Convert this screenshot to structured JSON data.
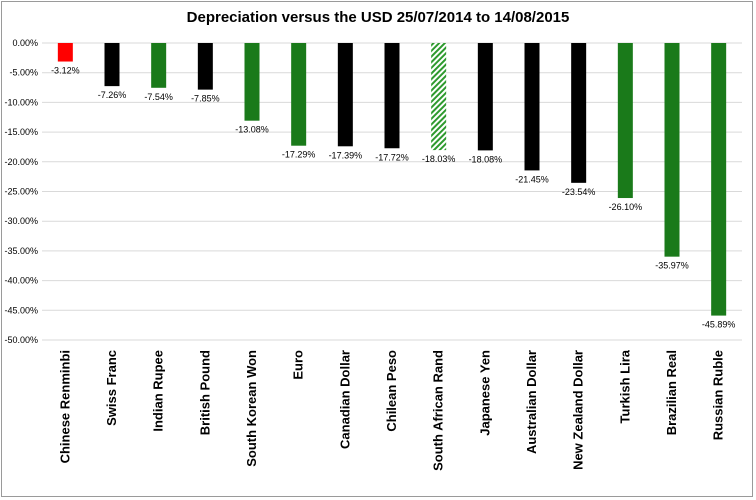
{
  "chart_data": {
    "type": "bar",
    "title": "Depreciation versus the USD 25/07/2014 to 14/08/2015",
    "xlabel": "",
    "ylabel": "",
    "ylim": [
      -50,
      0
    ],
    "yticks": [
      0,
      -5,
      -10,
      -15,
      -20,
      -25,
      -30,
      -35,
      -40,
      -45,
      -50
    ],
    "ytick_labels": [
      "0.00%",
      "-5.00%",
      "-10.00%",
      "-15.00%",
      "-20.00%",
      "-25.00%",
      "-30.00%",
      "-35.00%",
      "-40.00%",
      "-45.00%",
      "-50.00%"
    ],
    "grid": true,
    "categories": [
      "Chinese Renminbi",
      "Swiss Franc",
      "Indian Rupee",
      "British Pound",
      "South Korean Won",
      "Euro",
      "Canadian Dollar",
      "Chilean Peso",
      "South African Rand",
      "Japanese Yen",
      "Australian Dollar",
      "New Zealand Dollar",
      "Turkish Lira",
      "Brazilian Real",
      "Russian Ruble"
    ],
    "values": [
      -3.12,
      -7.26,
      -7.54,
      -7.85,
      -13.08,
      -17.29,
      -17.39,
      -17.72,
      -18.03,
      -18.08,
      -21.45,
      -23.54,
      -26.1,
      -35.97,
      -45.89
    ],
    "data_labels": [
      "-3.12%",
      "-7.26%",
      "-7.54%",
      "-7.85%",
      "-13.08%",
      "-17.29%",
      "-17.39%",
      "-17.72%",
      "-18.03%",
      "-18.08%",
      "-21.45%",
      "-23.54%",
      "-26.10%",
      "-35.97%",
      "-45.89%"
    ],
    "bar_colors": [
      "#ff0000",
      "#000000",
      "#1a7a1a",
      "#000000",
      "#1a7a1a",
      "#1a7a1a",
      "#000000",
      "#000000",
      "hatched-green",
      "#000000",
      "#000000",
      "#000000",
      "#1a7a1a",
      "#1a7a1a",
      "#1a7a1a"
    ],
    "colors": {
      "red": "#ff0000",
      "black": "#000000",
      "green": "#1a7a1a",
      "hatch": "#2e9a2e",
      "grid": "#d9d9d9"
    }
  }
}
